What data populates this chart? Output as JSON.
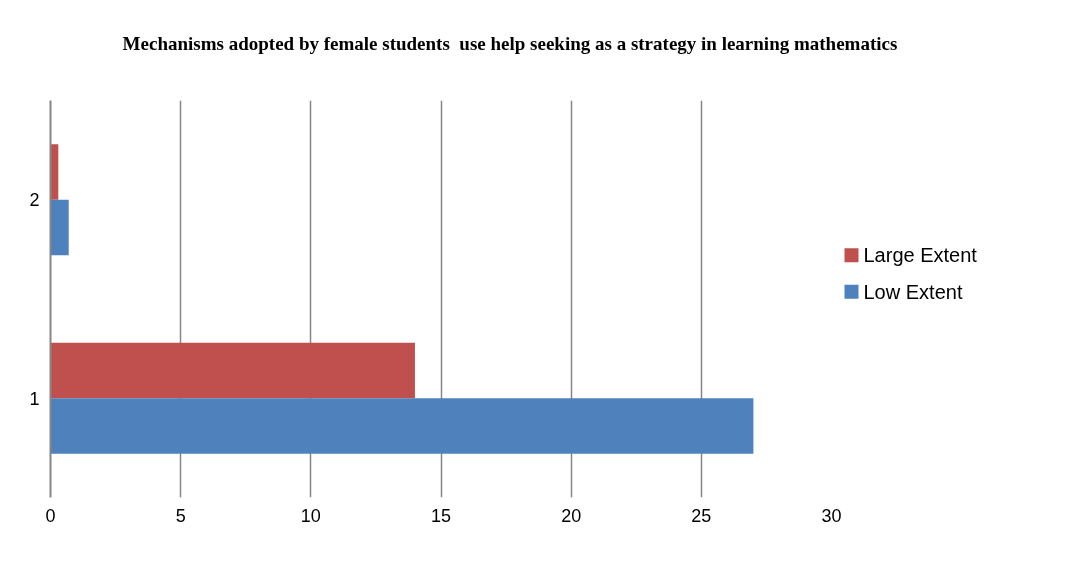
{
  "chart_data": {
    "type": "bar",
    "orientation": "horizontal",
    "title": "Mechanisms adopted by female students  use help seeking as a strategy in learning mathematics",
    "categories": [
      "2",
      "1"
    ],
    "series": [
      {
        "name": "Large Extent",
        "color": "#c0504d",
        "values": [
          0.3,
          14
        ]
      },
      {
        "name": "Low Extent",
        "color": "#4f81bd",
        "values": [
          0.7,
          27
        ]
      }
    ],
    "xlim": [
      0,
      30
    ],
    "xticks": [
      0,
      5,
      10,
      15,
      20,
      25,
      30
    ],
    "grid": "x",
    "legend": "right"
  }
}
